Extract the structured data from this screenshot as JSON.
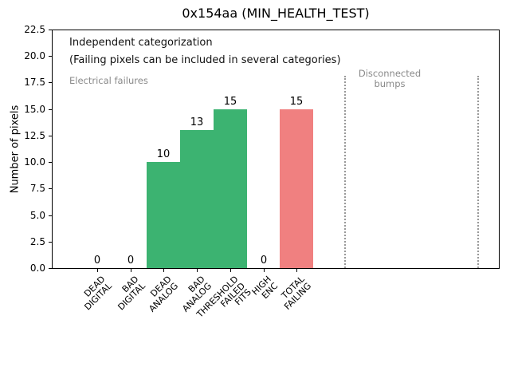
{
  "chart_data": {
    "type": "bar",
    "title": "0x154aa (MIN_HEALTH_TEST)",
    "xlabel": "",
    "ylabel": "Number of pixels",
    "ylim": [
      0,
      22.5
    ],
    "yticks": [
      0.0,
      2.5,
      5.0,
      7.5,
      10.0,
      12.5,
      15.0,
      17.5,
      20.0,
      22.5
    ],
    "ytick_labels": [
      "0.0",
      "2.5",
      "5.0",
      "7.5",
      "10.0",
      "12.5",
      "15.0",
      "17.5",
      "20.0",
      "22.5"
    ],
    "categories": [
      "DEAD\nDIGITAL",
      "BAD\nDIGITAL",
      "DEAD\nANALOG",
      "BAD\nANALOG",
      "THRESHOLD\nFAILED\nFITS",
      "HIGH\nENC",
      "TOTAL\nFAILING"
    ],
    "values": [
      0,
      0,
      10,
      13,
      15,
      0,
      15
    ],
    "bar_value_labels": [
      "0",
      "0",
      "10",
      "13",
      "15",
      "0",
      "15"
    ],
    "bar_colors_hex": [
      "#3cb371",
      "#3cb371",
      "#3cb371",
      "#3cb371",
      "#3cb371",
      "#3cb371",
      "#f08080"
    ],
    "grid": false,
    "legend": null,
    "annotations": {
      "independent": "Independent categorization",
      "note": "(Failing pixels can be included in several categories)",
      "electrical_group": "Electrical failures",
      "disconnected_group_lines": [
        "Disconnected",
        "bumps"
      ]
    },
    "vlines": {
      "style": "dotted",
      "color_hex": "#999999",
      "x_category_units": [
        7.46,
        11.46
      ]
    },
    "colors": {
      "green_bar": "#3cb371",
      "red_bar": "#f08080",
      "gray_text": "#8a8a8a",
      "axis": "#000000"
    }
  }
}
